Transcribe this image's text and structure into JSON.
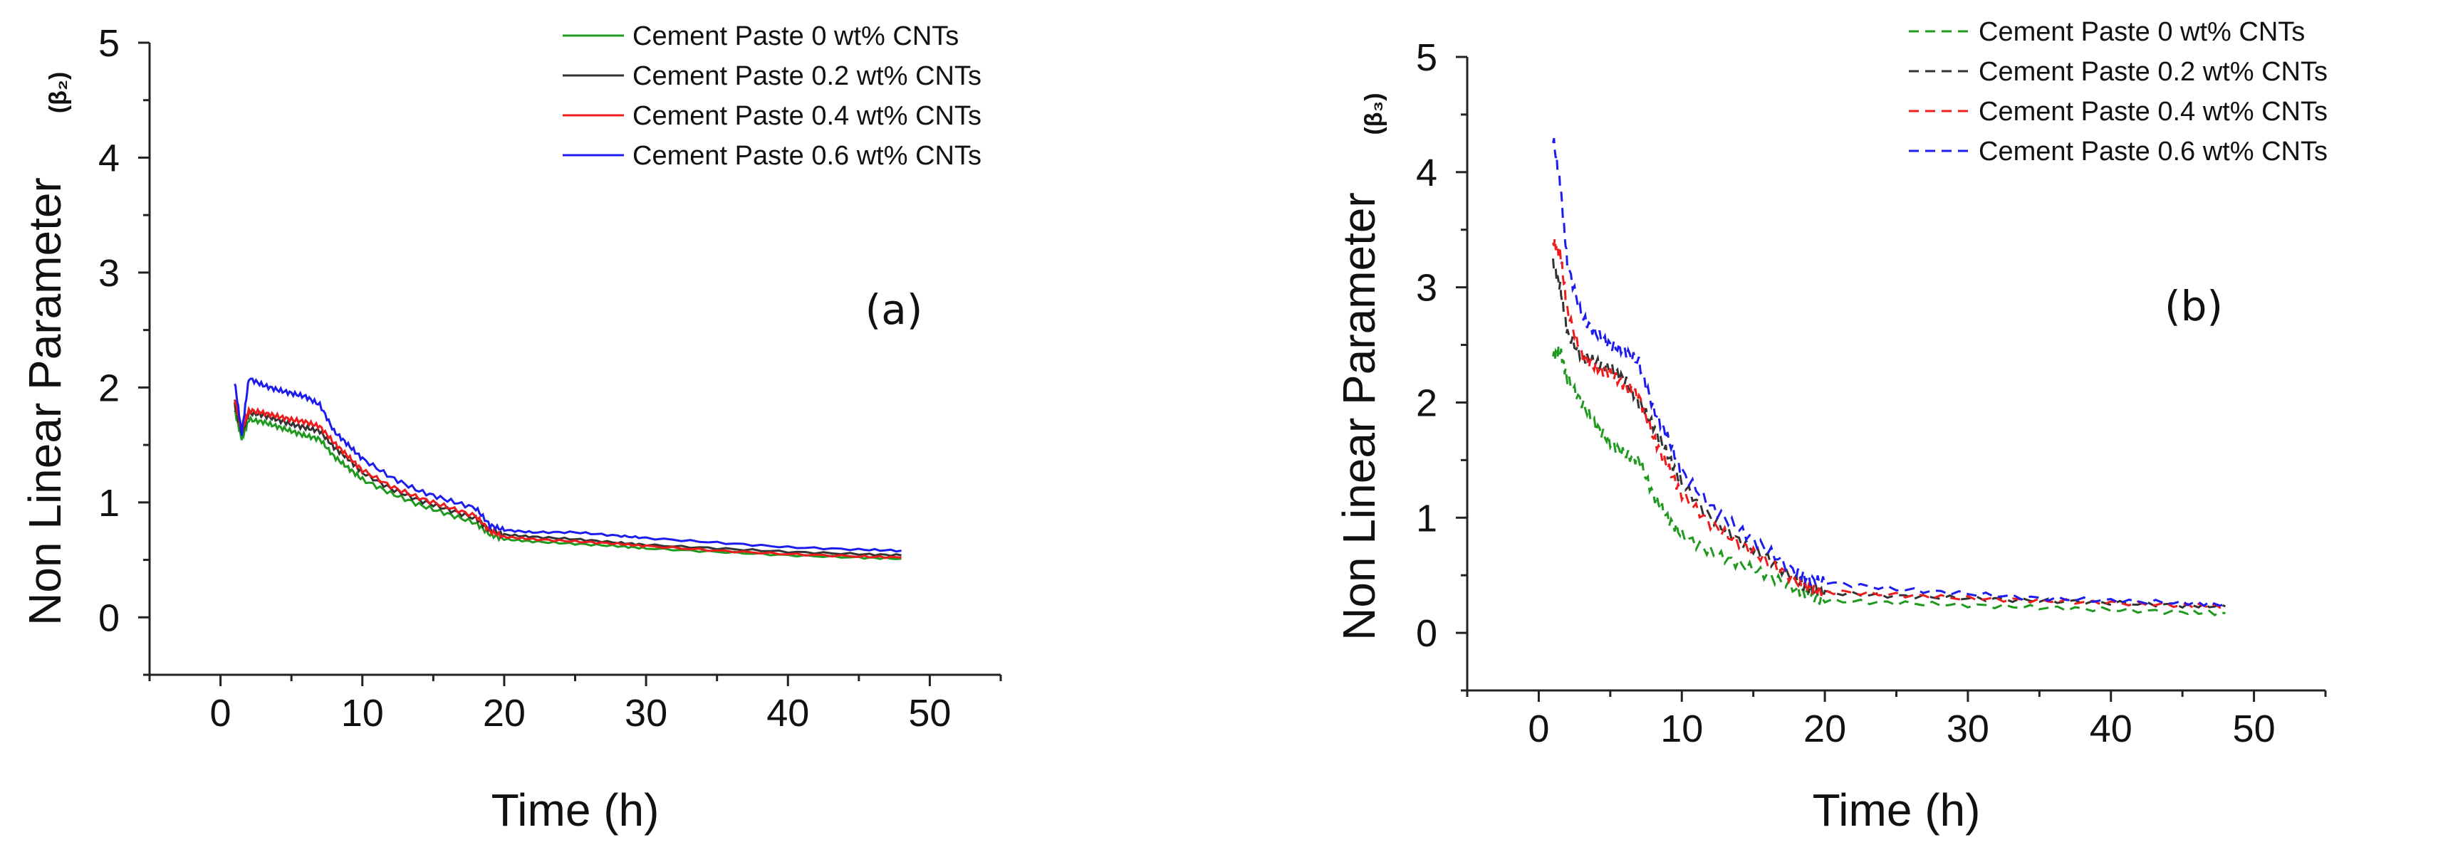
{
  "colors": {
    "cnt0": "#1f9a1f",
    "cnt02": "#333333",
    "cnt04": "#ee1c1c",
    "cnt06": "#1c1cee",
    "axis": "#222222"
  },
  "chart_data": [
    {
      "type": "line",
      "panel_label": "(a)",
      "ylabel_main": "Non Linear Parameter",
      "ylabel_sub": "(β₂)",
      "xlabel": "Time (h)",
      "xlim": [
        -5,
        55
      ],
      "ylim": [
        -0.5,
        5
      ],
      "xticks": [
        0,
        10,
        20,
        30,
        40,
        50
      ],
      "yticks": [
        0,
        1,
        2,
        3,
        4,
        5
      ],
      "line_style": "solid",
      "legend_position": "top-right",
      "series": [
        {
          "name": "Cement Paste 0 wt% CNTs",
          "color": "#1f9a1f",
          "x": [
            1,
            1.5,
            2,
            3,
            4,
            5,
            6,
            7,
            8,
            9,
            10,
            12,
            14,
            16,
            18,
            19,
            20,
            22,
            25,
            28,
            30,
            35,
            40,
            45,
            48
          ],
          "y": [
            1.8,
            1.55,
            1.72,
            1.7,
            1.66,
            1.62,
            1.58,
            1.55,
            1.4,
            1.3,
            1.2,
            1.08,
            0.98,
            0.9,
            0.82,
            0.72,
            0.68,
            0.66,
            0.64,
            0.62,
            0.6,
            0.57,
            0.54,
            0.52,
            0.51
          ]
        },
        {
          "name": "Cement Paste 0.2 wt% CNTs",
          "color": "#333333",
          "x": [
            1,
            1.5,
            2,
            3,
            4,
            5,
            6,
            7,
            8,
            9,
            10,
            12,
            14,
            16,
            18,
            19,
            20,
            22,
            25,
            28,
            30,
            35,
            40,
            45,
            48
          ],
          "y": [
            1.85,
            1.6,
            1.78,
            1.76,
            1.72,
            1.68,
            1.65,
            1.62,
            1.48,
            1.38,
            1.26,
            1.12,
            1.02,
            0.94,
            0.86,
            0.76,
            0.72,
            0.7,
            0.68,
            0.65,
            0.63,
            0.6,
            0.57,
            0.55,
            0.54
          ]
        },
        {
          "name": "Cement Paste 0.4 wt% CNTs",
          "color": "#ee1c1c",
          "x": [
            1,
            1.5,
            2,
            3,
            4,
            5,
            6,
            7,
            8,
            9,
            10,
            12,
            14,
            16,
            18,
            19,
            20,
            22,
            25,
            28,
            30,
            35,
            40,
            45,
            48
          ],
          "y": [
            1.9,
            1.62,
            1.8,
            1.78,
            1.75,
            1.72,
            1.7,
            1.66,
            1.52,
            1.4,
            1.28,
            1.14,
            1.04,
            0.96,
            0.88,
            0.75,
            0.7,
            0.68,
            0.66,
            0.64,
            0.62,
            0.58,
            0.55,
            0.53,
            0.52
          ]
        },
        {
          "name": "Cement Paste 0.6 wt% CNTs",
          "color": "#1c1cee",
          "x": [
            1,
            1.5,
            2,
            3,
            4,
            5,
            6,
            7,
            8,
            9,
            10,
            12,
            14,
            16,
            18,
            19,
            20,
            22,
            25,
            28,
            30,
            35,
            40,
            45,
            48
          ],
          "y": [
            2.05,
            1.6,
            2.08,
            2.02,
            1.98,
            1.95,
            1.92,
            1.85,
            1.62,
            1.5,
            1.38,
            1.22,
            1.1,
            1.02,
            0.95,
            0.8,
            0.76,
            0.74,
            0.74,
            0.71,
            0.69,
            0.65,
            0.61,
            0.59,
            0.58
          ]
        }
      ]
    },
    {
      "type": "line",
      "panel_label": "(b)",
      "ylabel_main": "Non Linear Parameter",
      "ylabel_sub": "(β₃)",
      "xlabel": "Time (h)",
      "xlim": [
        -5,
        55
      ],
      "ylim": [
        -0.5,
        5
      ],
      "xticks": [
        0,
        10,
        20,
        30,
        40,
        50
      ],
      "yticks": [
        0,
        1,
        2,
        3,
        4,
        5
      ],
      "line_style": "dashed",
      "legend_position": "top-right",
      "series": [
        {
          "name": "Cement Paste 0 wt% CNTs",
          "color": "#1f9a1f",
          "x": [
            1,
            1.5,
            2,
            3,
            4,
            5,
            6,
            7,
            8,
            9,
            10,
            12,
            14,
            16,
            18,
            19,
            20,
            25,
            30,
            35,
            40,
            45,
            48
          ],
          "y": [
            2.4,
            2.45,
            2.2,
            2.0,
            1.8,
            1.65,
            1.55,
            1.5,
            1.2,
            1.0,
            0.85,
            0.7,
            0.6,
            0.5,
            0.38,
            0.32,
            0.28,
            0.26,
            0.24,
            0.22,
            0.2,
            0.18,
            0.17
          ]
        },
        {
          "name": "Cement Paste 0.2 wt% CNTs",
          "color": "#333333",
          "x": [
            1,
            1.5,
            2,
            3,
            4,
            5,
            6,
            7,
            8,
            9,
            10,
            12,
            14,
            16,
            18,
            19,
            20,
            25,
            30,
            35,
            40,
            45,
            48
          ],
          "y": [
            3.2,
            3.0,
            2.6,
            2.4,
            2.35,
            2.3,
            2.2,
            2.0,
            1.8,
            1.55,
            1.3,
            1.0,
            0.8,
            0.65,
            0.45,
            0.38,
            0.35,
            0.32,
            0.3,
            0.28,
            0.26,
            0.24,
            0.23
          ]
        },
        {
          "name": "Cement Paste 0.4 wt% CNTs",
          "color": "#ee1c1c",
          "x": [
            1,
            1.5,
            2,
            3,
            4,
            5,
            6,
            7,
            8,
            9,
            10,
            12,
            14,
            16,
            18,
            19,
            20,
            25,
            30,
            35,
            40,
            45,
            48
          ],
          "y": [
            3.4,
            3.3,
            2.8,
            2.4,
            2.3,
            2.25,
            2.15,
            2.05,
            1.7,
            1.45,
            1.2,
            0.95,
            0.78,
            0.62,
            0.45,
            0.38,
            0.36,
            0.33,
            0.3,
            0.28,
            0.26,
            0.24,
            0.23
          ]
        },
        {
          "name": "Cement Paste 0.6 wt% CNTs",
          "color": "#1c1cee",
          "x": [
            1,
            1.5,
            2,
            3,
            4,
            5,
            6,
            7,
            8,
            9,
            10,
            12,
            14,
            16,
            18,
            19,
            20,
            25,
            30,
            35,
            40,
            45,
            48
          ],
          "y": [
            4.3,
            3.9,
            3.2,
            2.75,
            2.6,
            2.5,
            2.45,
            2.35,
            1.95,
            1.7,
            1.4,
            1.1,
            0.9,
            0.72,
            0.52,
            0.46,
            0.44,
            0.38,
            0.34,
            0.3,
            0.28,
            0.26,
            0.25
          ]
        }
      ]
    }
  ]
}
